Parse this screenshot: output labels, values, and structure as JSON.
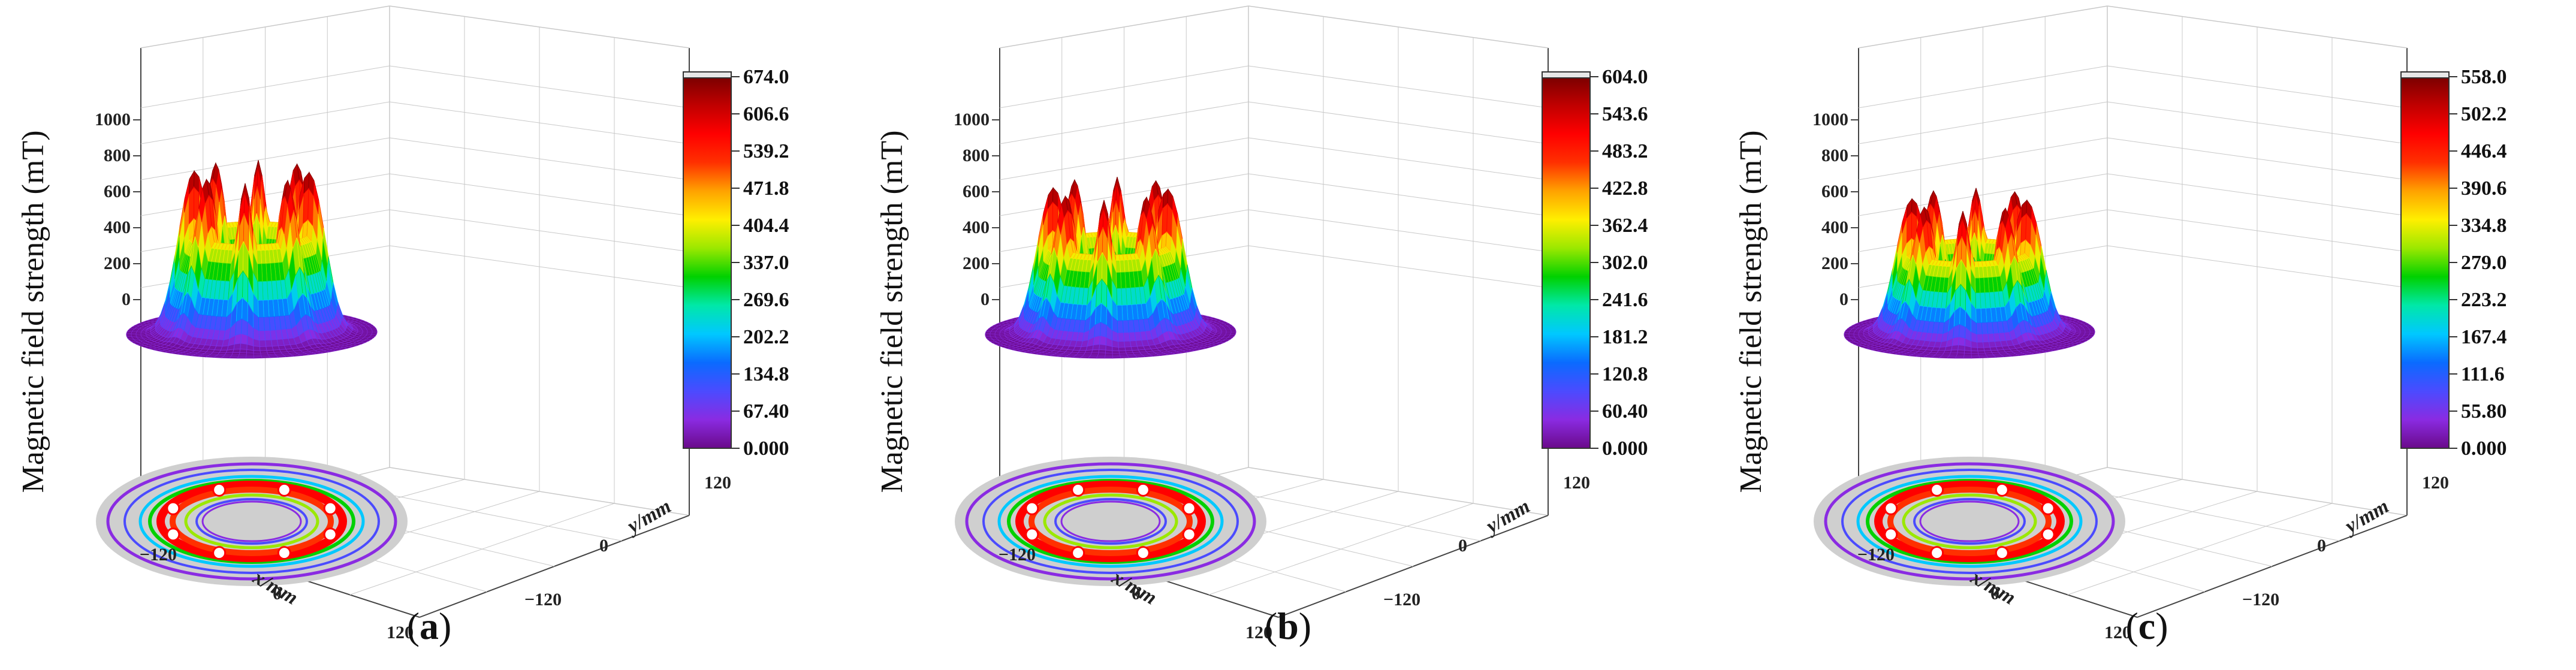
{
  "colors": {
    "colormap": [
      "#6a0a8a",
      "#8a2be2",
      "#4b4bff",
      "#0a6bff",
      "#00c8ff",
      "#00e8a8",
      "#00d100",
      "#9be800",
      "#ffef00",
      "#ffa200",
      "#ff3000",
      "#ff0000",
      "#c00000",
      "#7a0000"
    ],
    "floor": "#cfcfcf",
    "axis": "#444444",
    "grid": "#c8c8c8"
  },
  "chart_data": [
    {
      "type": "surface3d",
      "panel_label": "a",
      "zlabel": "Magnetic field strength (mT)",
      "xlabel": "x/mm",
      "ylabel": "y/mm",
      "z_ticks": [
        "1000",
        "800",
        "600",
        "400",
        "200",
        "0"
      ],
      "x_ticks": [
        "−120",
        "0",
        "120"
      ],
      "y_ticks": [
        "120",
        "0",
        "−120"
      ],
      "zlim": [
        0,
        1000
      ],
      "xlim": [
        -120,
        120
      ],
      "ylim": [
        -120,
        120
      ],
      "colorbar": {
        "min": 0,
        "max": 674.0,
        "ticks": [
          "674.0",
          "606.6",
          "539.2",
          "471.8",
          "404.4",
          "337.0",
          "269.6",
          "202.2",
          "134.8",
          "67.40",
          "0.000"
        ]
      },
      "peak_count": 8,
      "peak_value": 674.0
    },
    {
      "type": "surface3d",
      "panel_label": "b",
      "zlabel": "Magnetic field strength (mT)",
      "xlabel": "x/mm",
      "ylabel": "y/mm",
      "z_ticks": [
        "1000",
        "800",
        "600",
        "400",
        "200",
        "0"
      ],
      "x_ticks": [
        "−120",
        "0",
        "120"
      ],
      "y_ticks": [
        "120",
        "0",
        "−120"
      ],
      "zlim": [
        0,
        1000
      ],
      "xlim": [
        -120,
        120
      ],
      "ylim": [
        -120,
        120
      ],
      "colorbar": {
        "min": 0,
        "max": 604.0,
        "ticks": [
          "604.0",
          "543.6",
          "483.2",
          "422.8",
          "362.4",
          "302.0",
          "241.6",
          "181.2",
          "120.8",
          "60.40",
          "0.000"
        ]
      },
      "peak_count": 8,
      "peak_value": 604.0
    },
    {
      "type": "surface3d",
      "panel_label": "c",
      "zlabel": "Magnetic field strength (mT)",
      "xlabel": "x/mm",
      "ylabel": "y/mm",
      "z_ticks": [
        "1000",
        "800",
        "600",
        "400",
        "200",
        "0"
      ],
      "x_ticks": [
        "−120",
        "0",
        "120"
      ],
      "y_ticks": [
        "120",
        "0",
        "−120"
      ],
      "zlim": [
        0,
        1000
      ],
      "xlim": [
        -120,
        120
      ],
      "ylim": [
        -120,
        120
      ],
      "colorbar": {
        "min": 0,
        "max": 558.0,
        "ticks": [
          "558.0",
          "502.2",
          "446.4",
          "390.6",
          "334.8",
          "279.0",
          "223.2",
          "167.4",
          "111.6",
          "55.80",
          "0.000"
        ]
      },
      "peak_count": 8,
      "peak_value": 558.0
    }
  ]
}
